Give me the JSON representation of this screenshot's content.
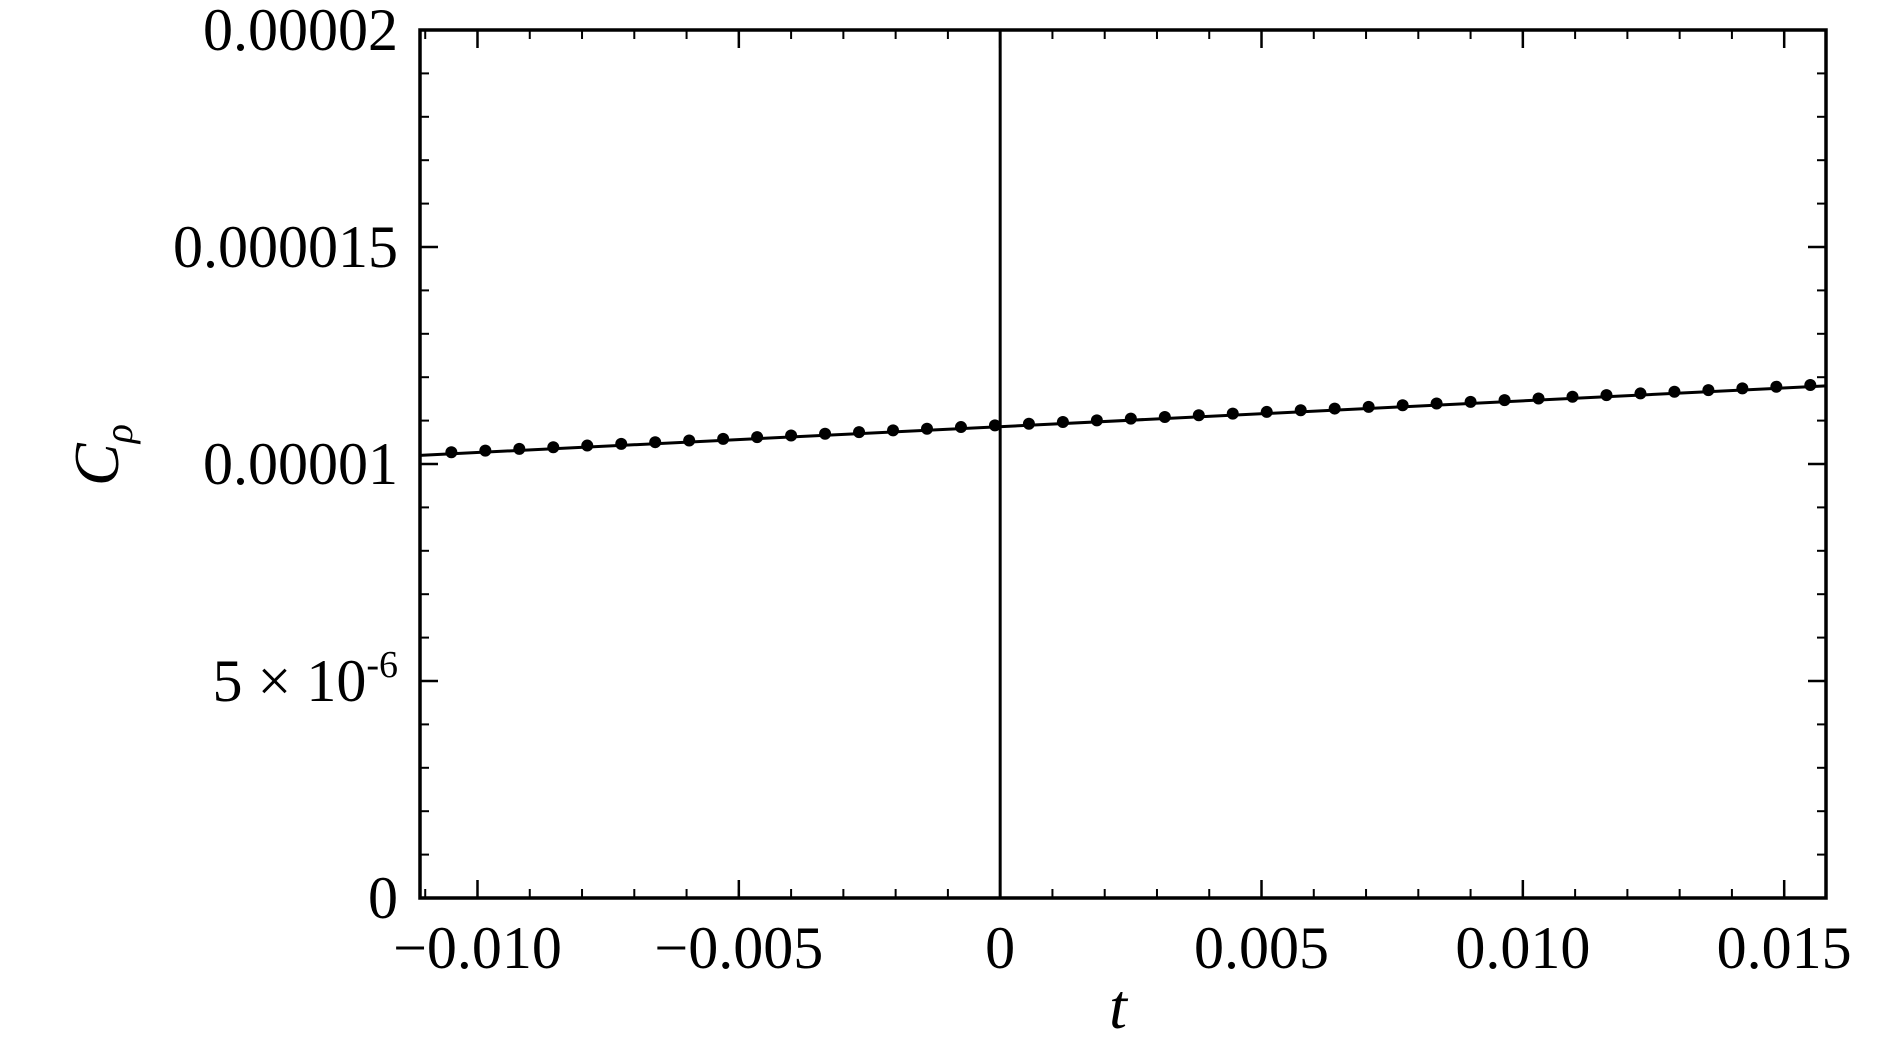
{
  "chart_data": {
    "type": "scatter",
    "title": "",
    "xlabel": "t",
    "ylabel": {
      "main": "C",
      "sub": "ρ"
    },
    "xlim": [
      -0.0111,
      0.0158
    ],
    "ylim": [
      0,
      2e-05
    ],
    "x_ticks": [
      {
        "value": -0.01,
        "label": "−0.010"
      },
      {
        "value": -0.005,
        "label": "−0.005"
      },
      {
        "value": 0,
        "label": "0"
      },
      {
        "value": 0.005,
        "label": "0.005"
      },
      {
        "value": 0.01,
        "label": "0.010"
      },
      {
        "value": 0.015,
        "label": "0.015"
      }
    ],
    "y_ticks": [
      {
        "value": 0,
        "label": "0"
      },
      {
        "value": 5e-06,
        "label": "5 × 10",
        "sup": "-6"
      },
      {
        "value": 1e-05,
        "label": "0.00001"
      },
      {
        "value": 1.5e-05,
        "label": "0.000015"
      },
      {
        "value": 2e-05,
        "label": "0.00002"
      }
    ],
    "x_minor_step": 0.001,
    "y_minor_step": 1e-06,
    "grid": false,
    "vertical_reference_line_x": 0,
    "series": [
      {
        "style": "line",
        "x": [
          -0.0111,
          0.0158
        ],
        "y": [
          1.02e-05,
          1.18e-05
        ]
      },
      {
        "style": "points",
        "x_start": -0.0105,
        "x_step": 0.00065,
        "count": 41,
        "y_at_x_start": 1.027e-05,
        "slope": 5.96e-08
      }
    ]
  }
}
